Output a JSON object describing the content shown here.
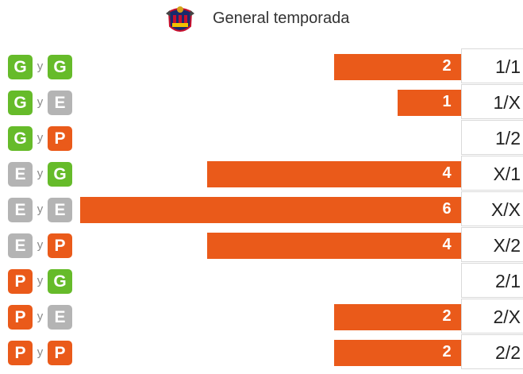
{
  "header": {
    "title": "General temporada",
    "crest_icon": "levante-crest-icon"
  },
  "colors": {
    "G": "#66bb2a",
    "E": "#b4b4b4",
    "P": "#ea5a1a",
    "bar": "#ea5a1a"
  },
  "connector": "y",
  "chart_data": {
    "type": "bar",
    "orientation": "horizontal",
    "title": "General temporada",
    "xlim": [
      0,
      6
    ],
    "categories": [
      "1/1",
      "1/X",
      "1/2",
      "X/1",
      "X/X",
      "X/2",
      "2/1",
      "2/X",
      "2/2"
    ],
    "category_badges": [
      [
        "G",
        "G"
      ],
      [
        "G",
        "E"
      ],
      [
        "G",
        "P"
      ],
      [
        "E",
        "G"
      ],
      [
        "E",
        "E"
      ],
      [
        "E",
        "P"
      ],
      [
        "P",
        "G"
      ],
      [
        "P",
        "E"
      ],
      [
        "P",
        "P"
      ]
    ],
    "values": [
      2,
      1,
      0,
      4,
      6,
      4,
      0,
      2,
      2
    ]
  }
}
